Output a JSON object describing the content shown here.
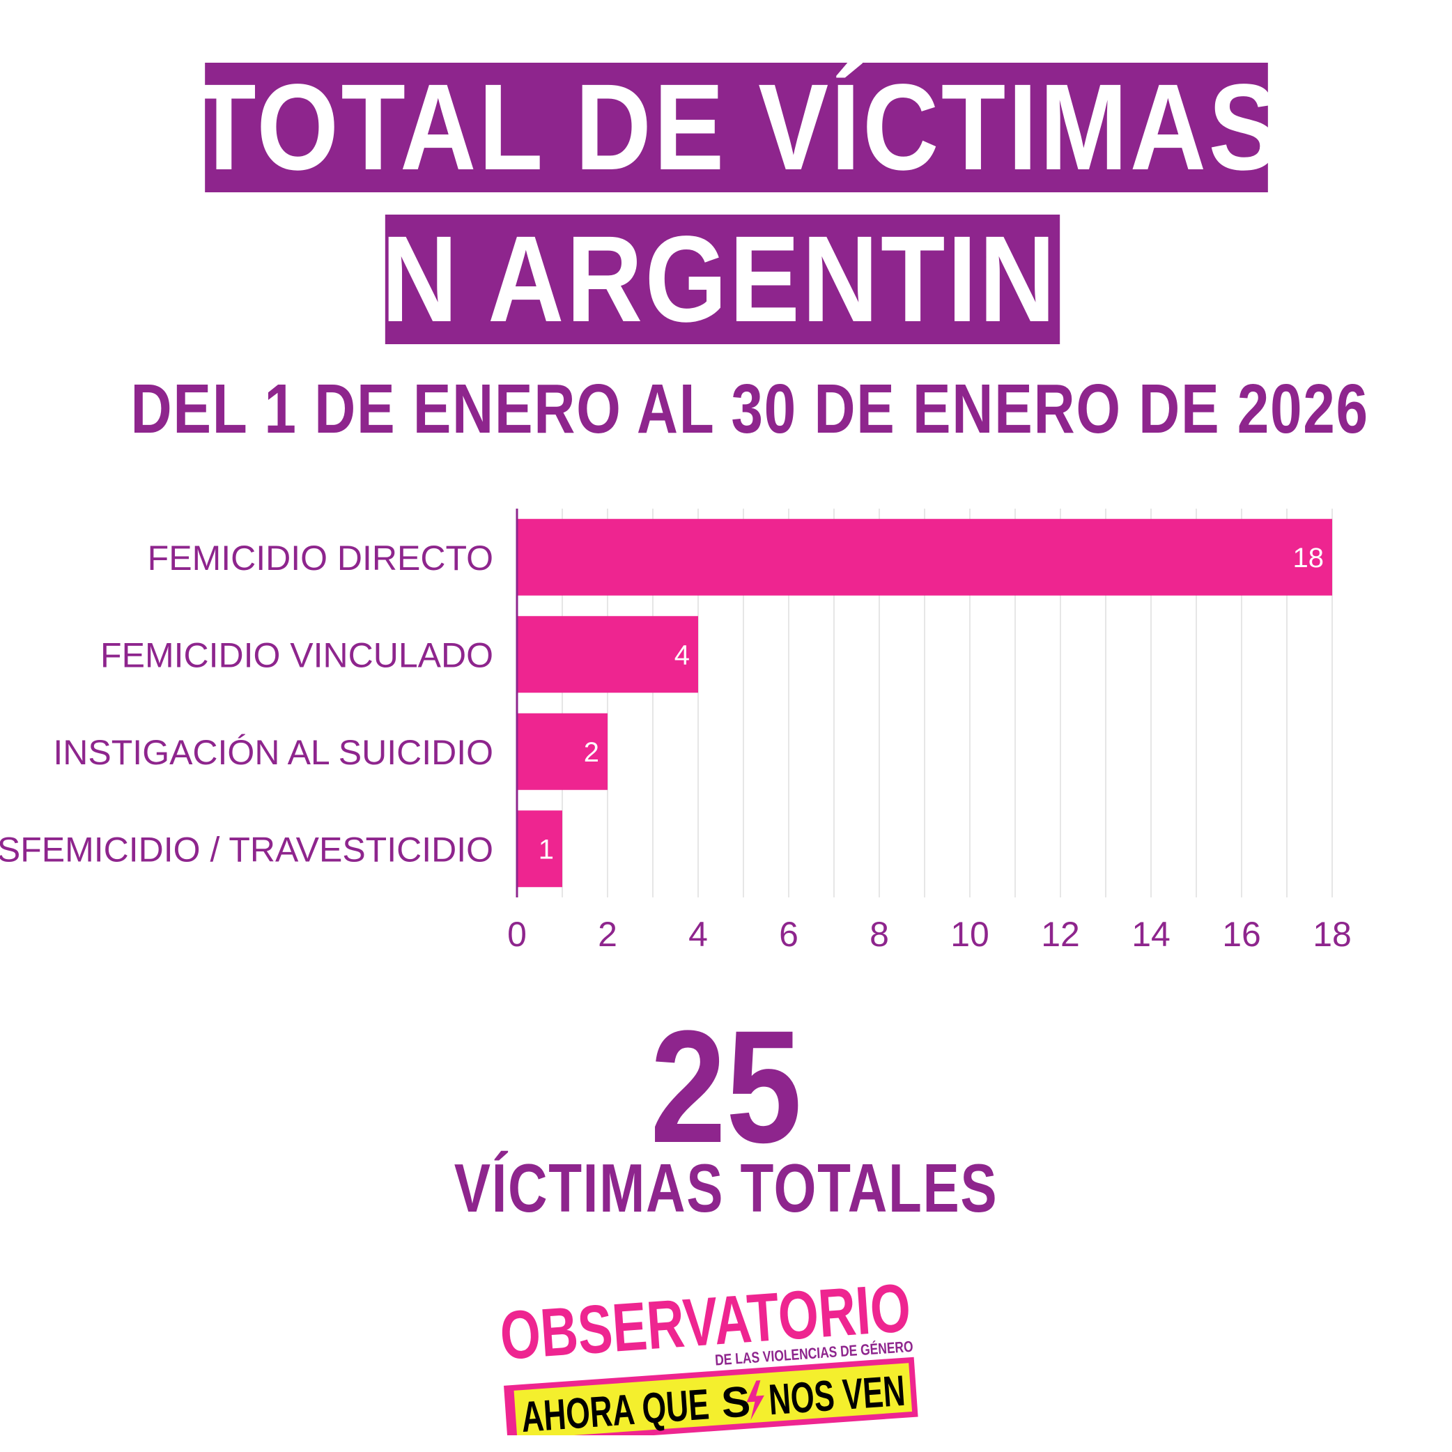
{
  "header": {
    "title_line1": "TOTAL DE VÍCTIMAS",
    "title_line2": "EN ARGENTINA",
    "subtitle": "DEL 1 DE ENERO AL 30 DE ENERO DE 2026"
  },
  "colors": {
    "purple": "#8e258d",
    "bar_pink": "#ee2590",
    "grid": "#e6e6e6",
    "logo_yellow": "#f4ef2d"
  },
  "chart_data": {
    "type": "bar",
    "orientation": "horizontal",
    "categories": [
      "FEMICIDIO DIRECTO",
      "FEMICIDIO VINCULADO",
      "INSTIGACIÓN AL SUICIDIO",
      "TRANSFEMICIDIO / TRAVESTICIDIO"
    ],
    "values": [
      18,
      4,
      2,
      1
    ],
    "data_labels": [
      "18",
      "4",
      "2",
      "1"
    ],
    "xlim": [
      0,
      18
    ],
    "x_ticks": [
      0,
      2,
      4,
      6,
      8,
      10,
      12,
      14,
      16,
      18
    ],
    "grid": true
  },
  "summary": {
    "total": "25",
    "total_label": "VÍCTIMAS TOTALES"
  },
  "logo": {
    "line1": "OBSERVATORIO",
    "line2": "DE LAS VIOLENCIAS DE GÉNERO",
    "line3_a": "AHORA QUE",
    "line3_b": "S",
    "line3_c": "NOS VEN"
  }
}
